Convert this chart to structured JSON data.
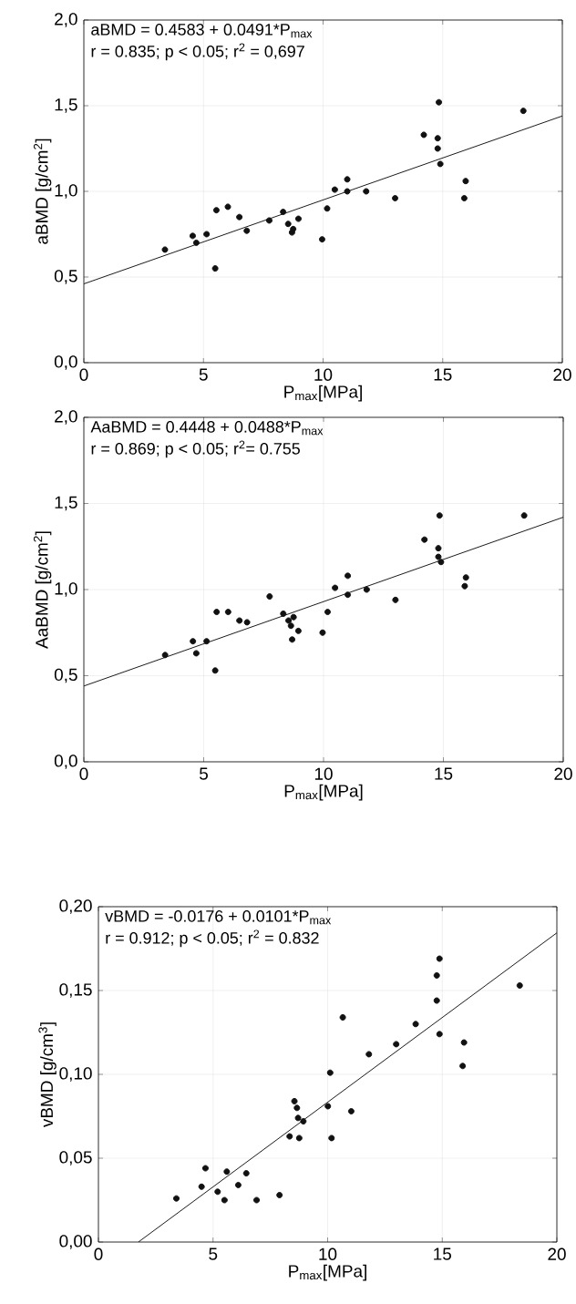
{
  "chart_data": [
    {
      "type": "scatter",
      "xlabel": "P$_{max}$[MPa]",
      "ylabel": "aBMD [g/cm$^{2}$]",
      "annotations": [
        "aBMD = 0.4583 + 0.0491*P$_{max}$",
        "r = 0.835; p < 0.05; r$^{2}$ = 0,697"
      ],
      "xlim": [
        0,
        20
      ],
      "ylim": [
        0,
        2
      ],
      "xticks": [
        0,
        5,
        10,
        15,
        20
      ],
      "yticks": [
        {
          "value": 0,
          "label": "0,0"
        },
        {
          "value": 0.5,
          "label": "0,5"
        },
        {
          "value": 1,
          "label": "1,0"
        },
        {
          "value": 1.5,
          "label": "1,5"
        },
        {
          "value": 2,
          "label": "2,0"
        }
      ],
      "grid": true,
      "series": [
        {
          "marker": "circle",
          "color": "#111111",
          "x": [
            3.39,
            4.55,
            4.7,
            5.13,
            5.49,
            5.54,
            6.02,
            6.5,
            6.81,
            7.75,
            8.33,
            8.54,
            8.75,
            8.7,
            8.97,
            9.96,
            10.17,
            10.49,
            11.01,
            11.01,
            11.8,
            13.01,
            14.21,
            14.79,
            14.79,
            14.84,
            14.9,
            15.9,
            15.96,
            18.37
          ],
          "values": [
            0.66,
            0.74,
            0.7,
            0.75,
            0.55,
            0.89,
            0.91,
            0.85,
            0.77,
            0.83,
            0.88,
            0.81,
            0.78,
            0.76,
            0.84,
            0.72,
            0.9,
            1.01,
            1.07,
            1.0,
            1.0,
            0.96,
            1.33,
            1.31,
            1.25,
            1.52,
            1.16,
            0.96,
            1.06,
            1.47
          ]
        },
        {
          "type": "line",
          "marker": "none",
          "color": "#1a1a1a",
          "x": [
            0,
            20
          ],
          "values": [
            0.46,
            1.44
          ]
        }
      ]
    },
    {
      "type": "scatter",
      "xlabel": "P$_{max}$[MPa]",
      "ylabel": "AaBMD [g/cm$^{2}$]",
      "annotations": [
        "AaBMD = 0.4448 + 0.0488*P$_{max}$",
        "r = 0.869; p < 0.05; r$^{2}$= 0.755"
      ],
      "xlim": [
        0,
        20
      ],
      "ylim": [
        0,
        2
      ],
      "xticks": [
        0,
        5,
        10,
        15,
        20
      ],
      "yticks": [
        {
          "value": 0,
          "label": "0,0"
        },
        {
          "value": 0.5,
          "label": "0,5"
        },
        {
          "value": 1,
          "label": "1,0"
        },
        {
          "value": 1.5,
          "label": "1,5"
        },
        {
          "value": 2,
          "label": "2,0"
        }
      ],
      "grid": true,
      "series": [
        {
          "marker": "circle",
          "color": "#111111",
          "x": [
            3.39,
            4.55,
            4.69,
            5.12,
            5.48,
            5.54,
            6.02,
            6.49,
            6.81,
            7.75,
            8.32,
            8.54,
            8.75,
            8.64,
            8.69,
            8.95,
            9.96,
            10.17,
            10.48,
            11.01,
            11.01,
            11.8,
            13.0,
            14.21,
            14.79,
            14.79,
            14.84,
            14.9,
            15.89,
            15.94,
            18.37
          ],
          "values": [
            0.62,
            0.7,
            0.63,
            0.7,
            0.53,
            0.87,
            0.87,
            0.82,
            0.81,
            0.96,
            0.86,
            0.82,
            0.84,
            0.79,
            0.71,
            0.76,
            0.75,
            0.87,
            1.01,
            1.08,
            0.97,
            1.0,
            0.94,
            1.29,
            1.24,
            1.19,
            1.43,
            1.16,
            1.02,
            1.07,
            1.43
          ]
        },
        {
          "type": "line",
          "marker": "none",
          "color": "#1a1a1a",
          "x": [
            0,
            20
          ],
          "values": [
            0.44,
            1.42
          ]
        }
      ]
    },
    {
      "type": "scatter",
      "xlabel": "P$_{max}$[MPa]",
      "ylabel": "vBMD [g/cm$^{3}$]",
      "annotations": [
        "vBMD = -0.0176 + 0.0101*P$_{max}$",
        "r = 0.912; p < 0.05; r$^{2}$ = 0.832"
      ],
      "xlim": [
        0,
        20
      ],
      "ylim": [
        0,
        0.2
      ],
      "xticks": [
        0,
        5,
        10,
        15,
        20
      ],
      "yticks": [
        {
          "value": 0,
          "label": "0,00"
        },
        {
          "value": 0.05,
          "label": "0,05"
        },
        {
          "value": 0.1,
          "label": "0,10"
        },
        {
          "value": 0.15,
          "label": "0,15"
        },
        {
          "value": 0.2,
          "label": "0,20"
        }
      ],
      "grid": true,
      "series": [
        {
          "marker": "circle",
          "color": "#111111",
          "x": [
            3.4,
            4.5,
            4.67,
            5.2,
            5.5,
            5.6,
            6.1,
            6.45,
            6.9,
            7.9,
            8.34,
            8.55,
            8.66,
            8.71,
            8.76,
            8.94,
            10.01,
            10.11,
            10.17,
            10.66,
            11.03,
            11.8,
            12.99,
            13.84,
            14.76,
            14.76,
            14.88,
            14.88,
            15.89,
            15.95,
            18.38
          ],
          "values": [
            0.026,
            0.033,
            0.044,
            0.03,
            0.025,
            0.042,
            0.034,
            0.041,
            0.025,
            0.028,
            0.063,
            0.084,
            0.08,
            0.074,
            0.062,
            0.072,
            0.081,
            0.101,
            0.062,
            0.134,
            0.078,
            0.112,
            0.118,
            0.13,
            0.159,
            0.144,
            0.169,
            0.124,
            0.105,
            0.119,
            0.153
          ]
        },
        {
          "type": "line",
          "marker": "none",
          "color": "#1a1a1a",
          "x": [
            1.743,
            20
          ],
          "values": [
            0,
            0.1844
          ]
        }
      ]
    }
  ]
}
